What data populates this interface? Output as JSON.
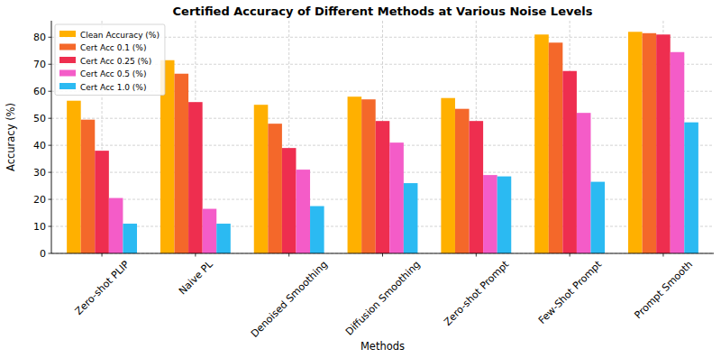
{
  "chart_data": {
    "type": "bar",
    "title": "Certified Accuracy of Different Methods at Various Noise Levels",
    "x_label": "Methods",
    "y_label": "Accuracy (%)",
    "categories": [
      "Zero-shot PLIP",
      "Naive PL",
      "Denoised Smoothing",
      "Diffusion Smoothing",
      "Zero-shot Prompt",
      "Few-Shot Prompt",
      "Prompt Smooth"
    ],
    "series": [
      {
        "name": "Clean Accuracy (%)",
        "color": "#ffb000",
        "values": [
          56.5,
          71.5,
          55,
          58,
          57.5,
          81,
          82
        ]
      },
      {
        "name": "Cert Acc 0.1 (%)",
        "color": "#f4682a",
        "values": [
          49.5,
          66.5,
          48,
          57,
          53.5,
          78,
          81.5
        ]
      },
      {
        "name": "Cert Acc 0.25 (%)",
        "color": "#ee2e4f",
        "values": [
          38,
          56,
          39,
          49,
          49,
          67.5,
          81
        ]
      },
      {
        "name": "Cert Acc 0.5 (%)",
        "color": "#f45cc8",
        "values": [
          20.5,
          16.5,
          31,
          41,
          29,
          52,
          74.5
        ]
      },
      {
        "name": "Cert Acc 1.0 (%)",
        "color": "#2bbaf2",
        "values": [
          11,
          11,
          17.5,
          26,
          28.5,
          26.5,
          48.5
        ]
      }
    ],
    "ylim": [
      0,
      86.1
    ],
    "yticks": [
      0,
      10,
      20,
      30,
      40,
      50,
      60,
      70,
      80
    ],
    "grid": true,
    "legend": "upper-left"
  }
}
